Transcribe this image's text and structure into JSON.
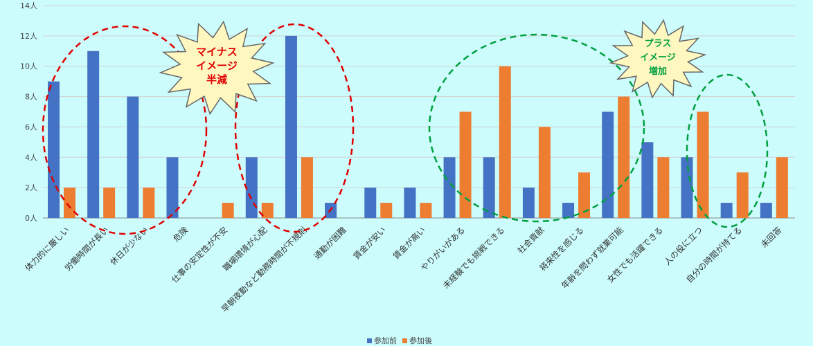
{
  "chart_data": {
    "type": "bar",
    "categories": [
      "体力的に厳しい",
      "労働時間が長い",
      "休日が少ない",
      "危険",
      "仕事の安定性が不安",
      "職場環境が心配",
      "早朝夜勤など勤務時間が不規則",
      "通勤が困難",
      "賃金が安い",
      "賃金が高い",
      "やりがいがある",
      "未経験でも挑戦できる",
      "社会貢献",
      "将来性を感じる",
      "年齢を問わず就業可能",
      "女性でも活躍できる",
      "人の役に立つ",
      "自分の時間が持てる",
      "未回答"
    ],
    "series": [
      {
        "name": "参加前",
        "color": "#4472c4",
        "values": [
          9,
          11,
          8,
          4,
          0,
          4,
          12,
          1,
          2,
          2,
          4,
          4,
          2,
          1,
          7,
          5,
          4,
          1,
          1
        ]
      },
      {
        "name": "参加後",
        "color": "#ed7d31",
        "values": [
          2,
          2,
          2,
          0,
          1,
          1,
          4,
          0,
          1,
          1,
          7,
          10,
          6,
          3,
          8,
          4,
          7,
          3,
          4
        ]
      }
    ],
    "ylim": [
      0,
      14
    ],
    "yticks": [
      "0人",
      "2人",
      "4人",
      "6人",
      "8人",
      "10人",
      "12人",
      "14人"
    ],
    "grid": true,
    "legend": "bottom",
    "annotations": [
      {
        "text": [
          "マイナス",
          "イメージ",
          "半減"
        ],
        "color": "#e00000"
      },
      {
        "text": [
          "プラス",
          "イメージ",
          "増加"
        ],
        "color": "#00a040"
      }
    ]
  }
}
